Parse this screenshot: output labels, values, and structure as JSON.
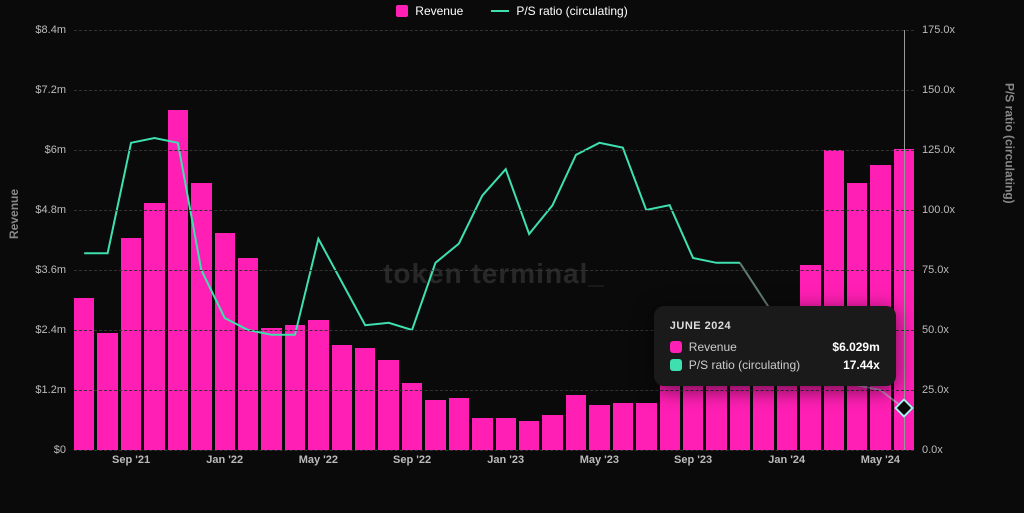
{
  "colors": {
    "bg": "#0a0a0a",
    "bar": "#ff1fb4",
    "line": "#3fe0b0",
    "line_faded": "#a7d9d0",
    "grid": "#333333",
    "text": "#bbbbbb",
    "tooltip_bg": "#1a1a1a"
  },
  "legend": {
    "revenue": "Revenue",
    "ps": "P/S ratio (circulating)"
  },
  "watermark": "token terminal_",
  "y_left": {
    "title": "Revenue",
    "ticks": [
      "$0",
      "$1.2m",
      "$2.4m",
      "$3.6m",
      "$4.8m",
      "$6m",
      "$7.2m",
      "$8.4m"
    ],
    "max": 8.4
  },
  "y_right": {
    "title": "P/S ratio (circulating)",
    "ticks": [
      "0.0x",
      "25.0x",
      "50.0x",
      "75.0x",
      "100.0x",
      "125.0x",
      "150.0x",
      "175.0x"
    ],
    "max": 175.0
  },
  "x_ticks": [
    {
      "label": "Sep '21",
      "index": 2
    },
    {
      "label": "Jan '22",
      "index": 6
    },
    {
      "label": "May '22",
      "index": 10
    },
    {
      "label": "Sep '22",
      "index": 14
    },
    {
      "label": "Jan '23",
      "index": 18
    },
    {
      "label": "May '23",
      "index": 22
    },
    {
      "label": "Sep '23",
      "index": 26
    },
    {
      "label": "Jan '24",
      "index": 30
    },
    {
      "label": "May '24",
      "index": 34
    }
  ],
  "series": {
    "revenue": [
      3.05,
      2.35,
      4.25,
      4.95,
      6.8,
      5.35,
      4.35,
      3.85,
      2.45,
      2.5,
      2.6,
      2.1,
      2.05,
      1.8,
      1.35,
      1.0,
      1.05,
      0.65,
      0.65,
      0.58,
      0.7,
      1.1,
      0.9,
      0.95,
      0.95,
      1.3,
      1.45,
      1.55,
      1.85,
      2.05,
      2.7,
      3.7,
      6.0,
      5.35,
      5.7,
      6.03
    ],
    "ps": [
      82,
      82,
      128,
      130,
      128,
      75,
      55,
      50,
      48,
      48,
      88,
      70,
      52,
      53,
      50,
      78,
      86,
      106,
      117,
      90,
      102,
      123,
      128,
      126,
      100,
      102,
      80,
      78,
      78,
      63,
      48,
      44,
      38,
      27,
      25,
      17.44
    ]
  },
  "tooltip": {
    "title": "JUNE 2024",
    "rows": [
      {
        "color": "#ff1fb4",
        "label": "Revenue",
        "value": "$6.029m"
      },
      {
        "color": "#3fe0b0",
        "label": "P/S ratio (circulating)",
        "value": "17.44x"
      }
    ],
    "hover_index": 35
  }
}
